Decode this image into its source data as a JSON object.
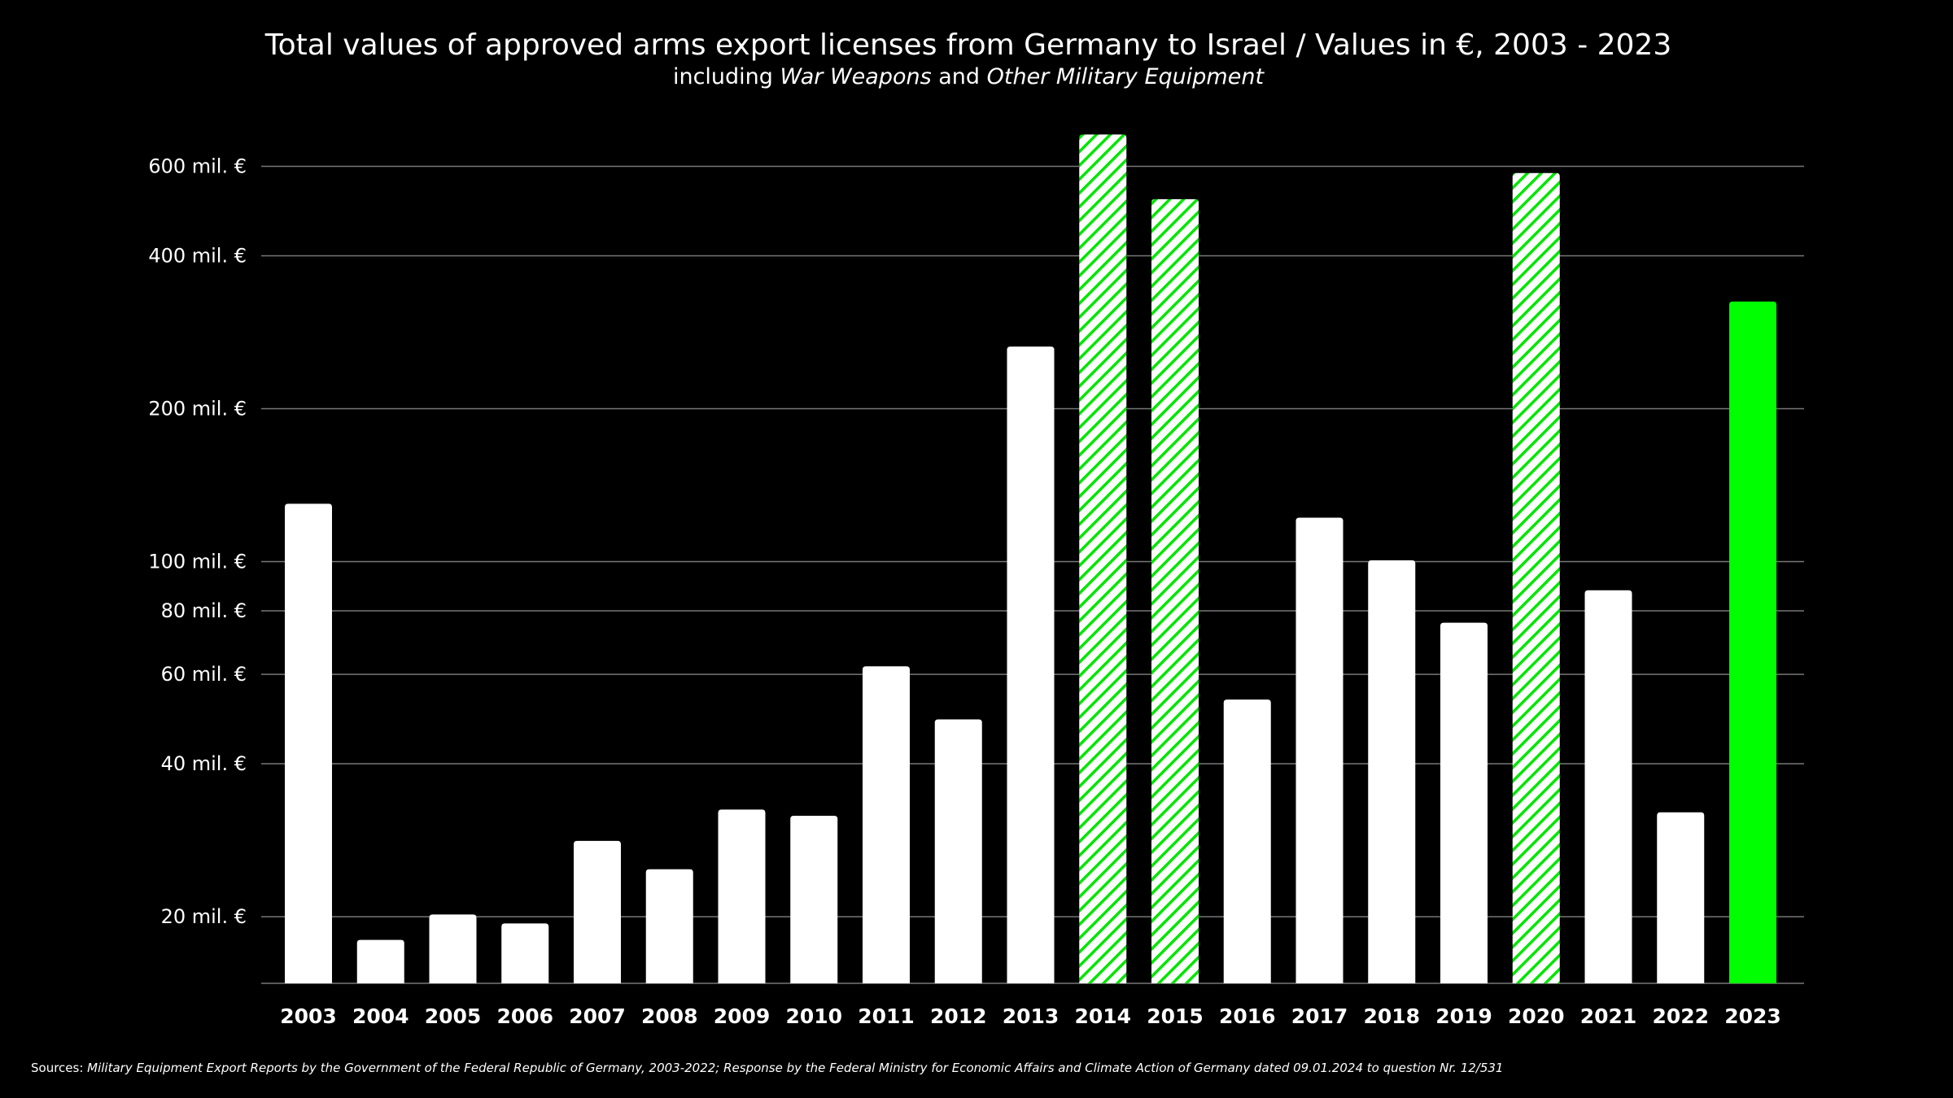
{
  "chart_data": {
    "type": "bar",
    "title": "Total values of approved arms export licenses from Germany to Israel / Values in €, 2003 - 2023",
    "subtitle": {
      "prefix": "including ",
      "term1": "War Weapons",
      "middle": " and ",
      "term2": "Other Military Equipment"
    },
    "y_scale": "log",
    "ylim": [
      14.8,
      750
    ],
    "grid": true,
    "y_ticks": [
      {
        "value": 20,
        "label": "20 mil. €"
      },
      {
        "value": 40,
        "label": "40 mil. €"
      },
      {
        "value": 60,
        "label": "60 mil. €"
      },
      {
        "value": 80,
        "label": "80 mil. €"
      },
      {
        "value": 100,
        "label": "100 mil. €"
      },
      {
        "value": 200,
        "label": "200 mil. €"
      },
      {
        "value": 400,
        "label": "400 mil. €"
      },
      {
        "value": 600,
        "label": "600 mil. €"
      }
    ],
    "categories": [
      "2003",
      "2004",
      "2005",
      "2006",
      "2007",
      "2008",
      "2009",
      "2010",
      "2011",
      "2012",
      "2013",
      "2014",
      "2015",
      "2016",
      "2017",
      "2018",
      "2019",
      "2020",
      "2021",
      "2022",
      "2023"
    ],
    "values": [
      130,
      18,
      20.2,
      19.4,
      28.2,
      24.8,
      32.5,
      31.6,
      62.2,
      48.9,
      265,
      693,
      517,
      53.5,
      122,
      100.6,
      75.8,
      582,
      87.8,
      32.1,
      325
    ],
    "bar_styles": [
      "solid",
      "solid",
      "solid",
      "solid",
      "solid",
      "solid",
      "solid",
      "solid",
      "solid",
      "solid",
      "solid",
      "hatched",
      "hatched",
      "solid",
      "solid",
      "solid",
      "solid",
      "hatched",
      "solid",
      "solid",
      "highlight"
    ],
    "colors": {
      "solid": "#ffffff",
      "hatch": "#00e600",
      "highlight": "#00ff00",
      "grid": "#777777",
      "background": "#000000"
    }
  },
  "footer": {
    "prefix": "Sources: ",
    "text": "Military Equipment Export Reports by the Government of the Federal Republic of Germany, 2003-2022; Response by the Federal Ministry for Economic Affairs and Climate Action of Germany dated 09.01.2024 to question Nr. 12/531"
  }
}
